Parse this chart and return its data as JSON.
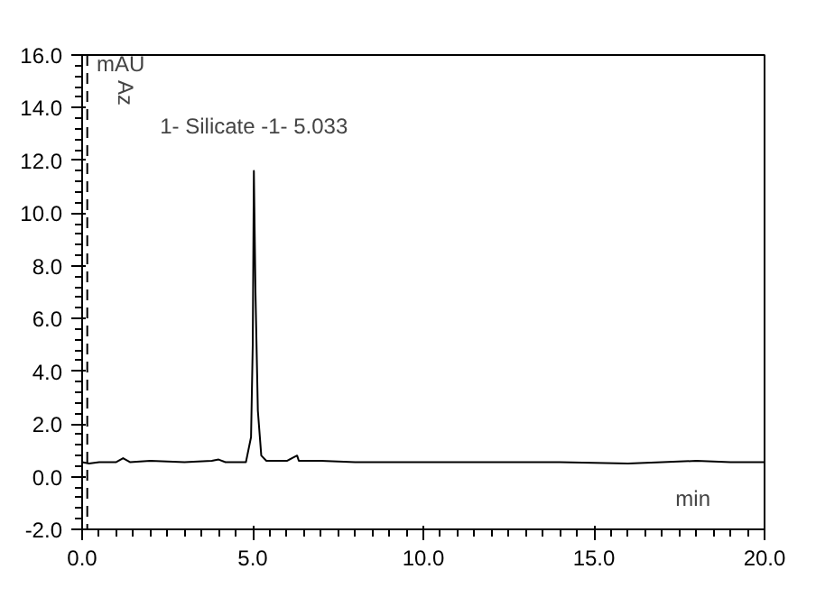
{
  "chart_data": {
    "type": "line",
    "xlabel": "min",
    "ylabel": "mAU",
    "x": [
      0.0,
      0.2,
      0.5,
      1.0,
      1.2,
      1.4,
      2.0,
      3.0,
      3.8,
      4.0,
      4.2,
      4.8,
      4.95,
      5.0,
      5.033,
      5.08,
      5.15,
      5.25,
      5.4,
      6.0,
      6.3,
      6.35,
      7,
      8,
      10,
      12,
      14,
      16,
      17,
      18,
      19,
      20
    ],
    "series": [
      {
        "color": "#000000",
        "values": [
          0.55,
          0.5,
          0.55,
          0.55,
          0.7,
          0.55,
          0.6,
          0.55,
          0.6,
          0.65,
          0.55,
          0.55,
          1.5,
          5.0,
          11.6,
          7.0,
          2.5,
          0.8,
          0.6,
          0.6,
          0.8,
          0.6,
          0.6,
          0.55,
          0.55,
          0.55,
          0.55,
          0.5,
          0.55,
          0.6,
          0.55,
          0.55
        ]
      }
    ],
    "xlim": [
      0,
      20
    ],
    "ylim": [
      -2,
      16
    ],
    "xticks": [
      {
        "value": 0,
        "label": "0.0"
      },
      {
        "value": 5,
        "label": "5.0"
      },
      {
        "value": 10,
        "label": "10.0"
      },
      {
        "value": 15,
        "label": "15.0"
      },
      {
        "value": 20,
        "label": "20.0"
      }
    ],
    "yticks": [
      {
        "value": -2,
        "label": "-2.0"
      },
      {
        "value": 0,
        "label": "0.0"
      },
      {
        "value": 2,
        "label": "2.0"
      },
      {
        "value": 4,
        "label": "4.0"
      },
      {
        "value": 6,
        "label": "6.0"
      },
      {
        "value": 8,
        "label": "8.0"
      },
      {
        "value": 10,
        "label": "10.0"
      },
      {
        "value": 12,
        "label": "12.0"
      },
      {
        "value": 14,
        "label": "14.0"
      },
      {
        "value": 16,
        "label": "16.0"
      }
    ],
    "annotations": [
      {
        "text": "1- Silicate -1- 5.033",
        "x": 5.033,
        "y": 11.6
      },
      "Az"
    ],
    "ref_lines": [
      {
        "axis": "x",
        "value": 0.15,
        "line_style": "dashed",
        "color": "#000000"
      }
    ],
    "grid": false
  }
}
